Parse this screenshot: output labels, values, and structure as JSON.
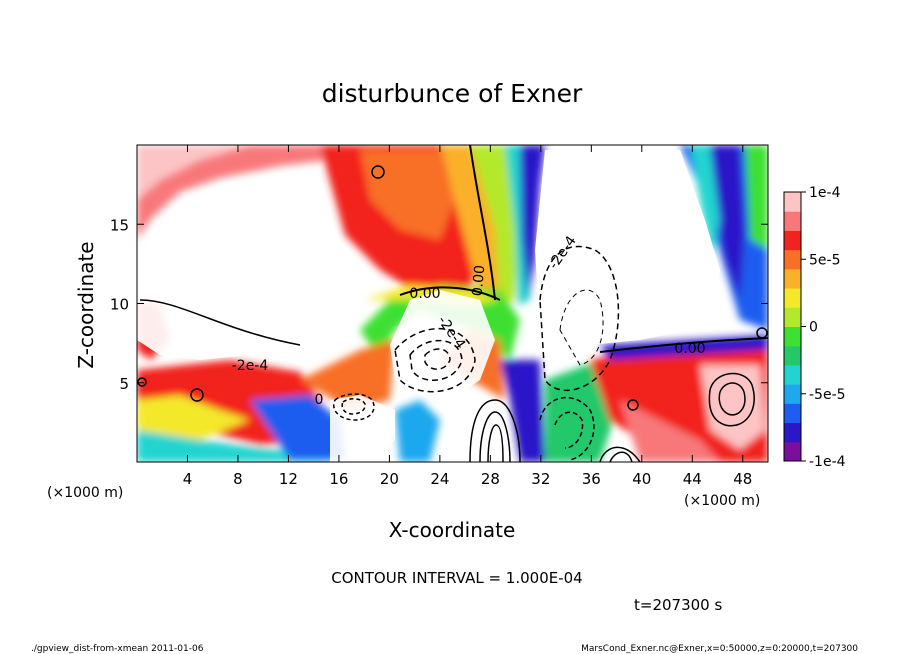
{
  "chart_data": {
    "type": "heatmap",
    "title": "disturbunce of Exner",
    "xlabel": "X-coordinate",
    "ylabel": "Z-coordinate",
    "x_unit_label": "(×1000 m)",
    "x_unit_label_right": "(×1000 m)",
    "x_ticks": [
      4,
      8,
      12,
      16,
      20,
      24,
      28,
      32,
      36,
      40,
      44,
      48
    ],
    "y_ticks": [
      5,
      10,
      15
    ],
    "xlim": [
      0,
      50
    ],
    "ylim": [
      0,
      20
    ],
    "colorbar": {
      "range": [
        -0.0001,
        0.0001
      ],
      "tick_values": [
        0.0001,
        5e-05,
        0,
        -5e-05,
        -0.0001
      ],
      "tick_labels": [
        "1e-4",
        "5e-5",
        "0",
        "-5e-5",
        "-1e-4"
      ],
      "colors": [
        "#7a0e9e",
        "#2a17c8",
        "#1e5df0",
        "#1fa8ee",
        "#22d4d0",
        "#22c86a",
        "#3ee032",
        "#b4e82a",
        "#f4e82a",
        "#fab02a",
        "#f87026",
        "#f2221e",
        "#f8787a",
        "#fcc4c4"
      ]
    },
    "contour_labels": [
      "0.00",
      "0.00",
      "0.00",
      "-2e-4",
      "-2e-4",
      "-2e-4",
      "0"
    ],
    "contour_interval": "CONTOUR INTERVAL = 1.000E-04",
    "time": "t=207300 s"
  },
  "footer": {
    "left": "./gpview_dist-from-xmean  2011-01-06",
    "right": "MarsCond_Exner.nc@Exner,x=0:50000,z=0:20000,t=207300"
  }
}
